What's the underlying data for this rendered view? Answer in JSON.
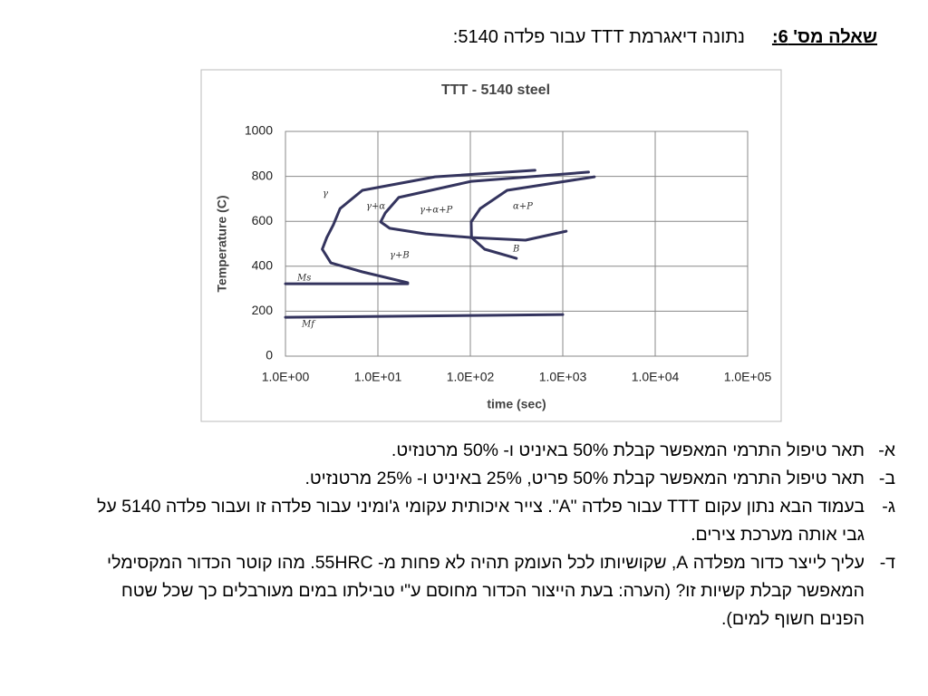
{
  "header": {
    "label": "שאלה מס' 6:",
    "text": "נתונה דיאגרמת TTT עבור פלדה 5140:"
  },
  "chart_data": {
    "type": "line",
    "title": "TTT - 5140 steel",
    "xlabel": "time (sec)",
    "ylabel": "Temperature (C)",
    "xscale": "log",
    "xlim": [
      1,
      100000
    ],
    "xticks": [
      {
        "value": 1,
        "label": "1.0E+00"
      },
      {
        "value": 10,
        "label": "1.0E+01"
      },
      {
        "value": 100,
        "label": "1.0E+02"
      },
      {
        "value": 1000,
        "label": "1.0E+03"
      },
      {
        "value": 10000,
        "label": "1.0E+04"
      },
      {
        "value": 100000,
        "label": "1.0E+05"
      }
    ],
    "ylim": [
      0,
      1000
    ],
    "yticks": [
      0,
      200,
      400,
      600,
      800,
      1000
    ],
    "grid": true,
    "series": [
      {
        "color": "#34345e",
        "x": [
          500,
          41.5,
          6.8,
          3.9,
          3.3,
          2.8,
          2.5,
          3.1,
          6.8,
          21
        ],
        "values": [
          827,
          798,
          738,
          657,
          585,
          528,
          476,
          415,
          375,
          327
        ]
      },
      {
        "color": "#34345e",
        "x": [
          1900,
          102,
          16.8,
          12,
          10.7,
          13.4,
          33,
          102,
          395,
          1090
        ],
        "values": [
          819,
          778,
          706,
          637,
          597,
          569,
          544,
          528,
          516,
          556
        ]
      },
      {
        "color": "#34345e",
        "x": [
          2200,
          250,
          128,
          102,
          103,
          143,
          315
        ],
        "values": [
          798,
          738,
          657,
          597,
          528,
          476,
          435
        ]
      },
      {
        "color": "#34345e",
        "x": [
          1,
          21
        ],
        "values": [
          322,
          322
        ]
      },
      {
        "color": "#34345e",
        "x": [
          1,
          1000
        ],
        "values": [
          173,
          185
        ]
      }
    ],
    "annotations": [
      "γ",
      "γ+α",
      "γ+α+P",
      "α+P",
      "γ+B",
      "B",
      "Ms",
      "Mf"
    ]
  },
  "items": [
    {
      "marker": "א-",
      "text": "תאר טיפול התרמי המאפשר קבלת 50% באיניט ו- 50% מרטנזיט."
    },
    {
      "marker": "ב-",
      "text": "תאר טיפול התרמי המאפשר קבלת 50% פריט, 25% באיניט ו- 25% מרטנזיט."
    },
    {
      "marker": "ג-",
      "text": "בעמוד הבא נתון עקום TTT עבור פלדה \"A\". צייר איכותית עקומי ג'ומיני עבור פלדה זו ועבור פלדה 5140 על גבי אותה מערכת צירים."
    },
    {
      "marker": "ד-",
      "text": "עליך לייצר כדור מפלדה A, שקושיותו לכל העומק תהיה לא פחות מ- 55HRC. מהו קוטר הכדור המקסימלי המאפשר קבלת קשיות זו? (הערה: בעת הייצור הכדור מחוסם ע\"י טבילתו במים מעורבלים כך שכל שטח הפנים חשוף למים)."
    }
  ]
}
